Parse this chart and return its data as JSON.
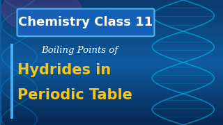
{
  "bg_color_top": "#0a3a6e",
  "bg_color_mid": "#0e5a9e",
  "bg_color_bottom": "#062550",
  "title_box_text": "Chemistry Class 11",
  "title_box_bg": "#1a6abf",
  "title_box_border": "#4db8ff",
  "title_text_color": "#ffffff",
  "subtitle_text": "Boiling Points of",
  "subtitle_color": "#ffffff",
  "main_text_line1": "Hydrides in",
  "main_text_line2": "Periodic Table",
  "main_text_color": "#f5c518",
  "left_bar_color": "#4db8ff",
  "figsize": [
    3.2,
    1.8
  ],
  "dpi": 100
}
